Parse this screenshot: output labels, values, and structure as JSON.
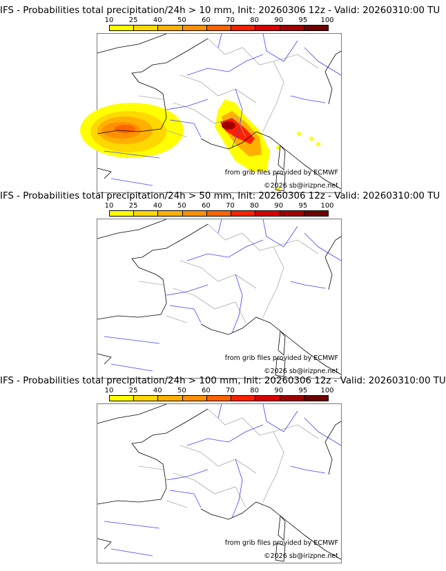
{
  "panels": [
    {
      "title": "IFS - Probabilities total precipitation/24h > 10 mm, Init: 20260306 12z - Valid: 20260310:00 TU",
      "has_precip": true
    },
    {
      "title": "IFS - Probabilities total precipitation/24h > 50 mm, Init: 20260306 12z - Valid: 20260310:00 TU",
      "has_precip": false
    },
    {
      "title": "IFS - Probabilities total precipitation/24h > 100 mm, Init: 20260306 12z - Valid: 20260310:00 TU",
      "has_precip": false
    }
  ],
  "colorbar": {
    "ticks": [
      "10",
      "25",
      "40",
      "50",
      "60",
      "70",
      "80",
      "90",
      "95",
      "100"
    ],
    "colors": [
      "#ffff00",
      "#ffd800",
      "#ffb000",
      "#ff9000",
      "#ff6400",
      "#ff2000",
      "#d80000",
      "#a00000",
      "#6e0000"
    ]
  },
  "credits": {
    "source": "from grib files provided by ECMWF",
    "copyright": "©2026 sb@irizpne.net"
  }
}
